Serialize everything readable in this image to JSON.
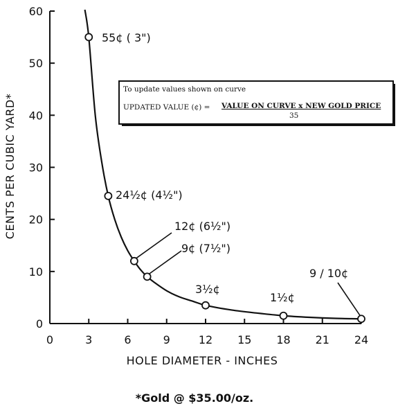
{
  "chart_data": {
    "type": "line",
    "xlabel": "HOLE DIAMETER - INCHES",
    "ylabel": "CENTS PER CUBIC YARD*",
    "xlim": [
      0,
      24
    ],
    "ylim": [
      0,
      60
    ],
    "x_ticks": [
      "0",
      "3",
      "6",
      "9",
      "12",
      "15",
      "18",
      "21",
      "24"
    ],
    "y_ticks": [
      "0",
      "10",
      "20",
      "30",
      "40",
      "50",
      "60"
    ],
    "grid": false,
    "legend": "none",
    "series": [
      {
        "curve_x": [
          3.0,
          3.5,
          4.0,
          4.5,
          5.0,
          5.5,
          6.0,
          6.5,
          7.0,
          7.5,
          8.0,
          9.0,
          10.0,
          11.0,
          12.0,
          14.0,
          16.0,
          18.0,
          20.0,
          22.0,
          24.0
        ],
        "curve_y": [
          55,
          40,
          31,
          24.5,
          20,
          16.6,
          14,
          12,
          10.3,
          9,
          8,
          6.3,
          5.1,
          4.3,
          3.5,
          2.6,
          2.0,
          1.5,
          1.2,
          1.0,
          0.9
        ],
        "points": [
          {
            "x": 3,
            "y": 55,
            "label_main": "55¢ ( 3\")"
          },
          {
            "x": 4.5,
            "y": 24.5,
            "label_main": "24½¢ (4½\")"
          },
          {
            "x": 6.5,
            "y": 12,
            "label_main": "12¢ (6½\")"
          },
          {
            "x": 7.5,
            "y": 9,
            "label_main": "9¢ (7½\")"
          },
          {
            "x": 12,
            "y": 3.5,
            "label_main": "3½¢"
          },
          {
            "x": 18,
            "y": 1.5,
            "label_main": "1½¢"
          },
          {
            "x": 24,
            "y": 0.9,
            "label_main": "9 / 10¢"
          }
        ]
      }
    ],
    "annotation_box": {
      "line1": "To update values shown on curve",
      "line2_prefix": "UPDATED VALUE (¢) =",
      "line2_numerator": "VALUE ON CURVE x NEW GOLD PRICE",
      "line2_denominator": "35"
    },
    "footnote": "*Gold @ $35.00/oz."
  },
  "colors": {
    "ink": "#111111",
    "background": "#ffffff"
  }
}
